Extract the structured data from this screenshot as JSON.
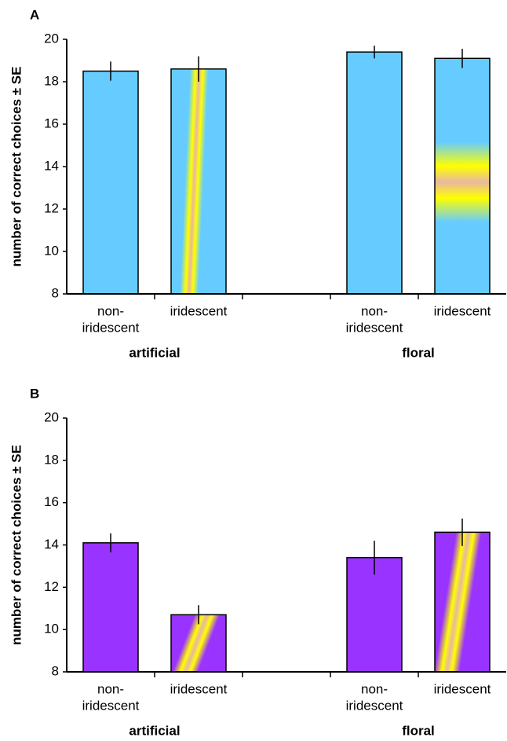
{
  "chart_data": [
    {
      "type": "bar",
      "panel": "A",
      "ylabel": "number of correct choices ± SE",
      "categories": [
        [
          "non-",
          "iridescent"
        ],
        [
          "iridescent"
        ],
        [
          "non-",
          "iridescent"
        ],
        [
          "iridescent"
        ]
      ],
      "groups": [
        "artificial",
        "floral"
      ],
      "values": [
        18.5,
        18.6,
        19.4,
        19.1
      ],
      "errors": [
        0.45,
        0.6,
        0.3,
        0.45
      ],
      "color": "#66ccff",
      "ylim": [
        8,
        20
      ],
      "yticks": [
        8,
        10,
        12,
        14,
        16,
        18,
        20
      ]
    },
    {
      "type": "bar",
      "panel": "B",
      "ylabel": "number of correct choices ± SE",
      "categories": [
        [
          "non-",
          "iridescent"
        ],
        [
          "iridescent"
        ],
        [
          "non-",
          "iridescent"
        ],
        [
          "iridescent"
        ]
      ],
      "groups": [
        "artificial",
        "floral"
      ],
      "values": [
        14.1,
        10.7,
        13.4,
        14.6
      ],
      "errors": [
        0.45,
        0.45,
        0.8,
        0.65
      ],
      "color": "#9933ff",
      "ylim": [
        8,
        20
      ],
      "yticks": [
        8,
        10,
        12,
        14,
        16,
        18,
        20
      ]
    }
  ]
}
